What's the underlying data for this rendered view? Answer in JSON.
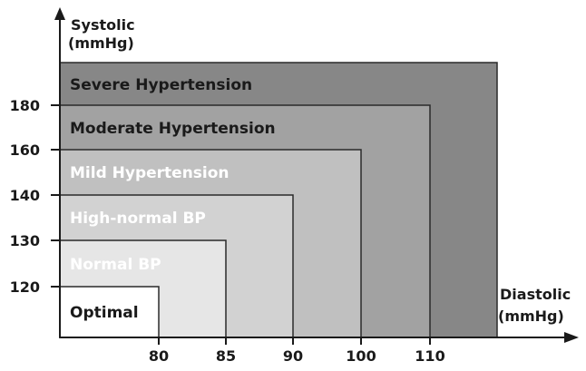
{
  "chart_data": {
    "type": "area",
    "title": "",
    "xlabel": "Diastolic",
    "xlabel_unit": "(mmHg)",
    "ylabel": "Systolic",
    "ylabel_unit": "(mmHg)",
    "x_ticks": [
      80,
      85,
      90,
      100,
      110
    ],
    "y_ticks": [
      120,
      130,
      140,
      160,
      180
    ],
    "zones": [
      {
        "name": "Severe Hypertension",
        "diastolic_max": null,
        "systolic_max": null,
        "color": "#878787",
        "text_color": "#1a1a1a"
      },
      {
        "name": "Moderate Hypertension",
        "diastolic_max": 110,
        "systolic_max": 180,
        "color": "#a2a2a2",
        "text_color": "#1a1a1a"
      },
      {
        "name": "Mild Hypertension",
        "diastolic_max": 100,
        "systolic_max": 160,
        "color": "#c0c0c0",
        "text_color": "#ffffff"
      },
      {
        "name": "High-normal BP",
        "diastolic_max": 90,
        "systolic_max": 140,
        "color": "#d2d2d2",
        "text_color": "#ffffff"
      },
      {
        "name": "Normal BP",
        "diastolic_max": 85,
        "systolic_max": 130,
        "color": "#e6e6e6",
        "text_color": "#ffffff"
      },
      {
        "name": "Optimal",
        "diastolic_max": 80,
        "systolic_max": 120,
        "color": "#ffffff",
        "text_color": "#1a1a1a"
      }
    ],
    "grid": false,
    "legend": "none"
  }
}
